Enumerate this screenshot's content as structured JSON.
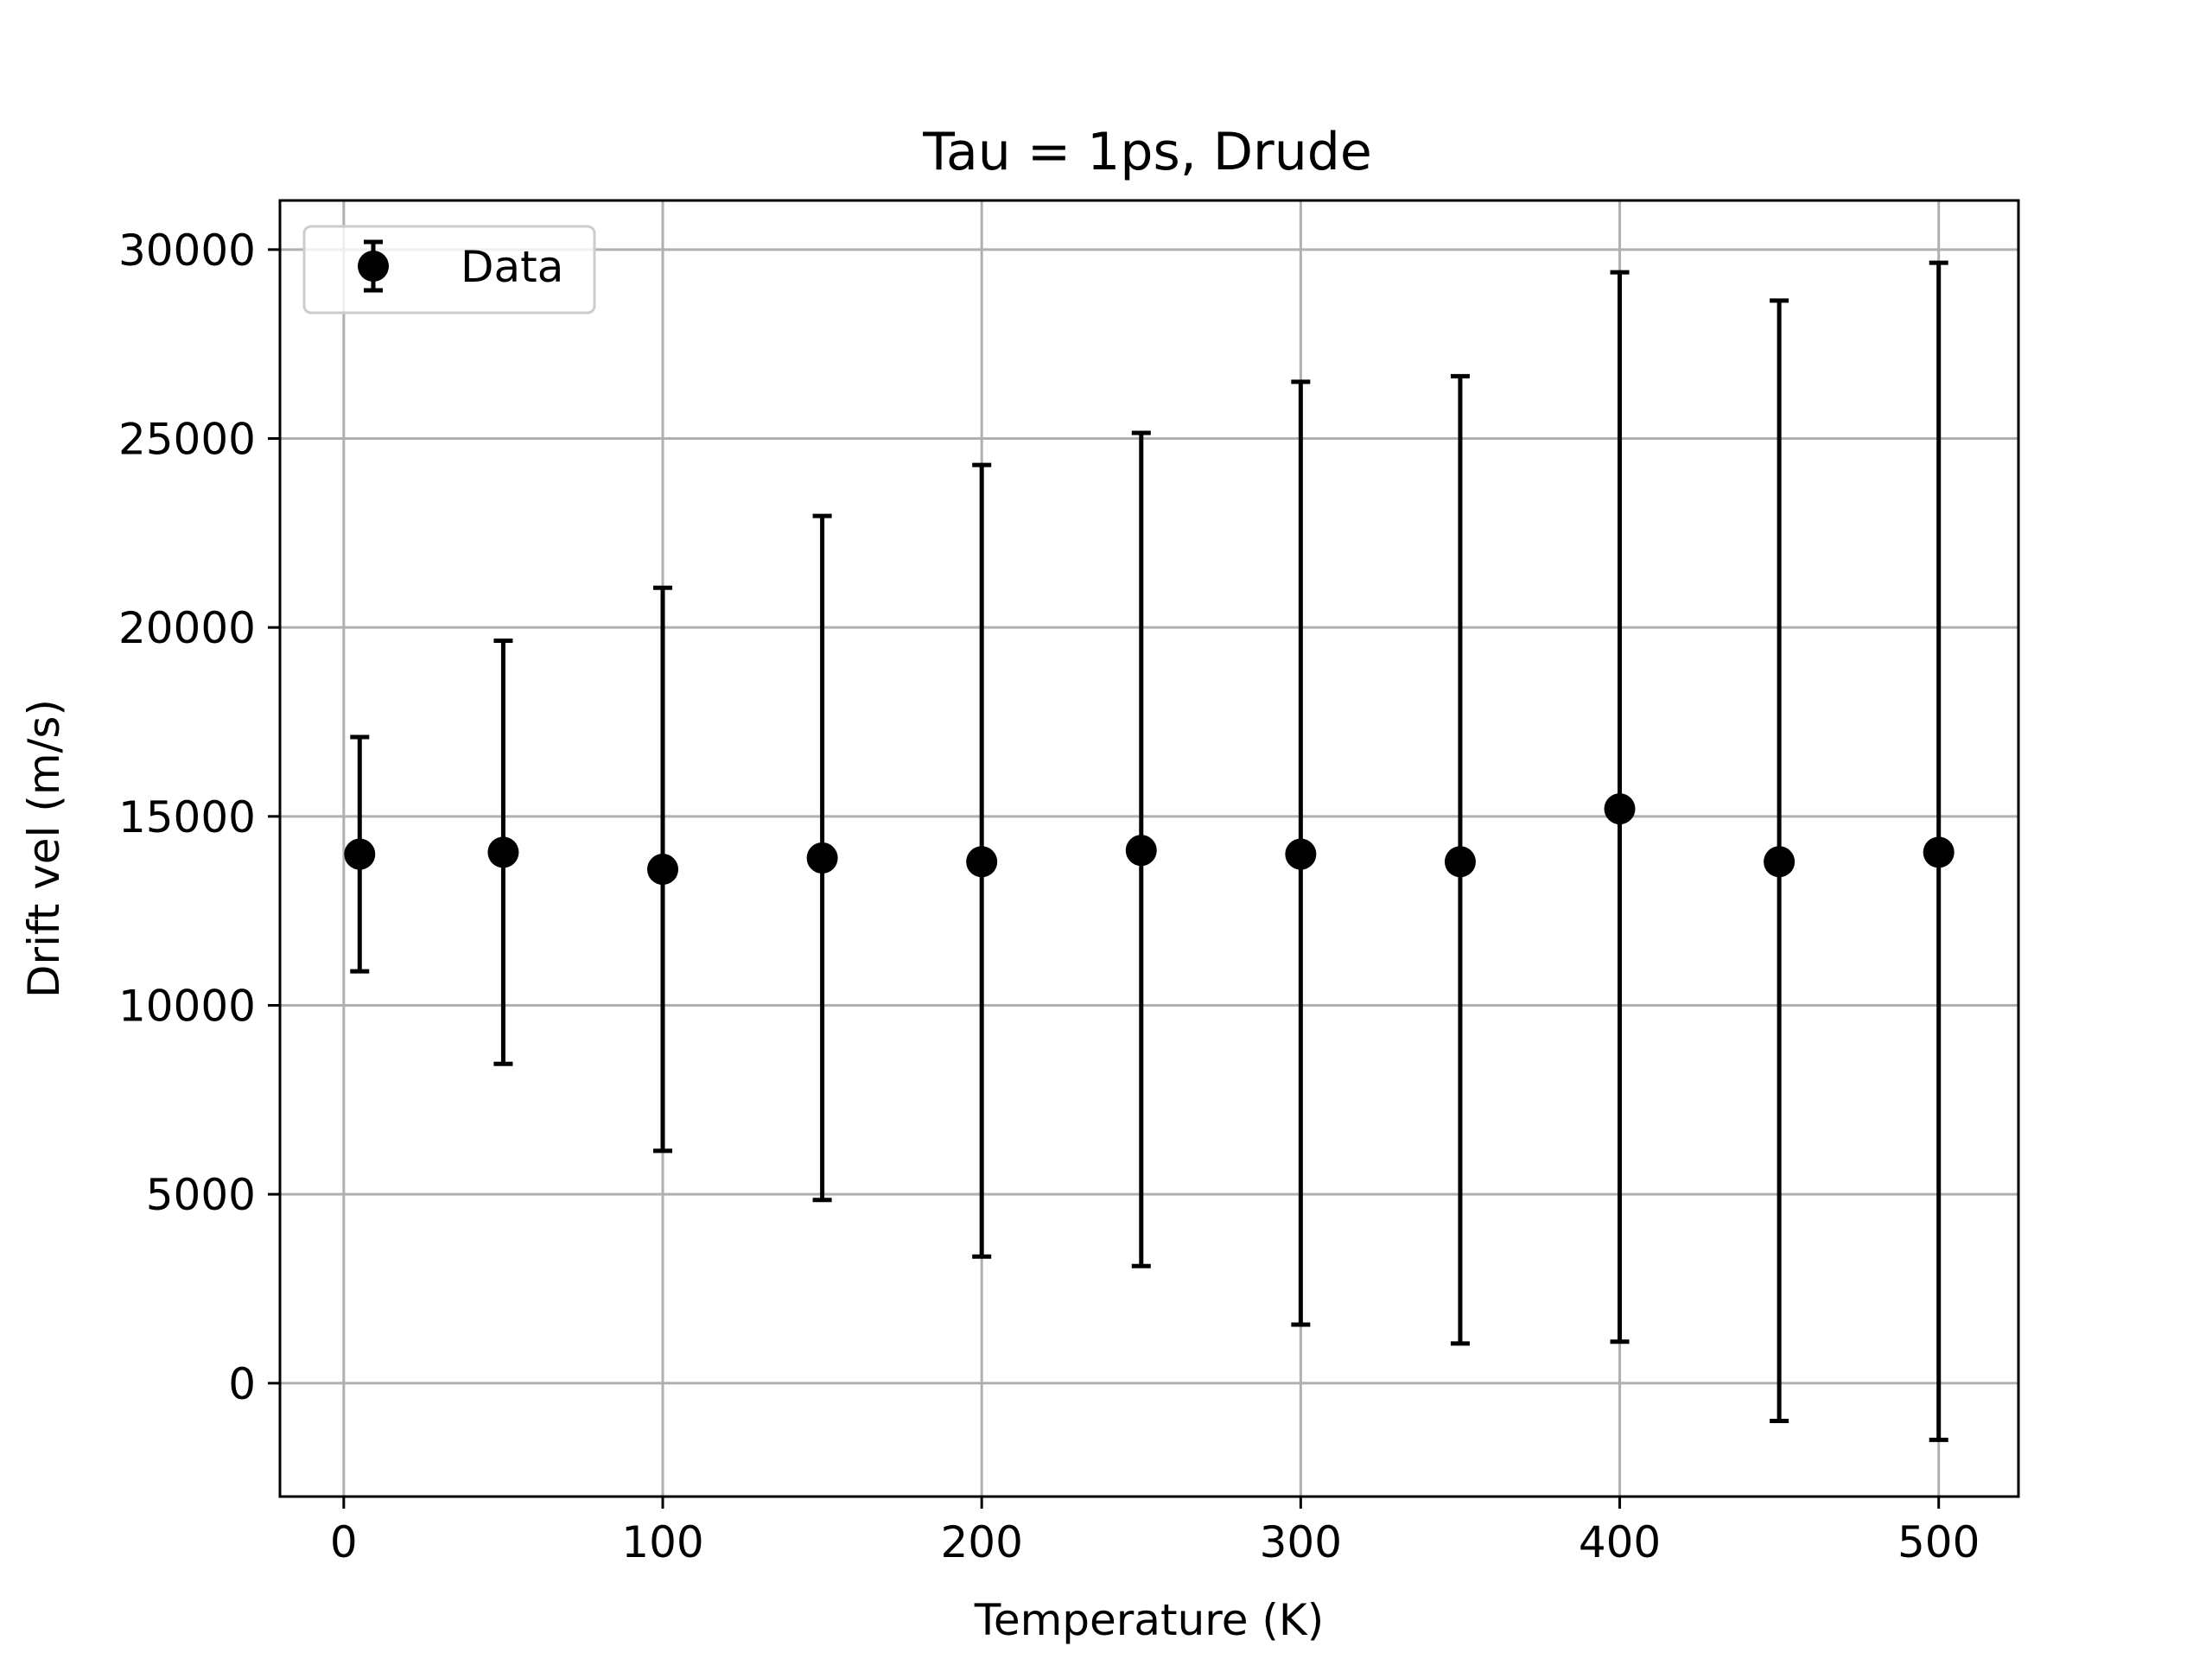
{
  "chart_data": {
    "type": "scatter",
    "title": "Tau = 1ps, Drude",
    "xlabel": "Temperature (K)",
    "ylabel": "Drift vel (m/s)",
    "xlim": [
      -20,
      525
    ],
    "ylim": [
      -3000,
      31300
    ],
    "xticks": [
      0,
      100,
      200,
      300,
      400,
      500
    ],
    "yticks": [
      0,
      5000,
      10000,
      15000,
      20000,
      25000,
      30000
    ],
    "grid": true,
    "legend": {
      "position": "top-left",
      "entries": [
        "Data"
      ]
    },
    "series": [
      {
        "name": "Data",
        "color": "#000000",
        "marker": "circle",
        "points": [
          {
            "x": 5,
            "y": 14000,
            "yerr_low": 10900,
            "yerr_high": 17100
          },
          {
            "x": 50,
            "y": 14050,
            "yerr_low": 8450,
            "yerr_high": 19650
          },
          {
            "x": 100,
            "y": 13600,
            "yerr_low": 6150,
            "yerr_high": 21050
          },
          {
            "x": 150,
            "y": 13900,
            "yerr_low": 4850,
            "yerr_high": 22950
          },
          {
            "x": 200,
            "y": 13800,
            "yerr_low": 3350,
            "yerr_high": 24300
          },
          {
            "x": 250,
            "y": 14100,
            "yerr_low": 3100,
            "yerr_high": 25150
          },
          {
            "x": 300,
            "y": 14000,
            "yerr_low": 1550,
            "yerr_high": 26500
          },
          {
            "x": 350,
            "y": 13800,
            "yerr_low": 1050,
            "yerr_high": 26650
          },
          {
            "x": 400,
            "y": 15200,
            "yerr_low": 1100,
            "yerr_high": 29400
          },
          {
            "x": 450,
            "y": 13800,
            "yerr_low": -1000,
            "yerr_high": 28650
          },
          {
            "x": 500,
            "y": 14050,
            "yerr_low": -1500,
            "yerr_high": 29650
          }
        ]
      }
    ]
  }
}
